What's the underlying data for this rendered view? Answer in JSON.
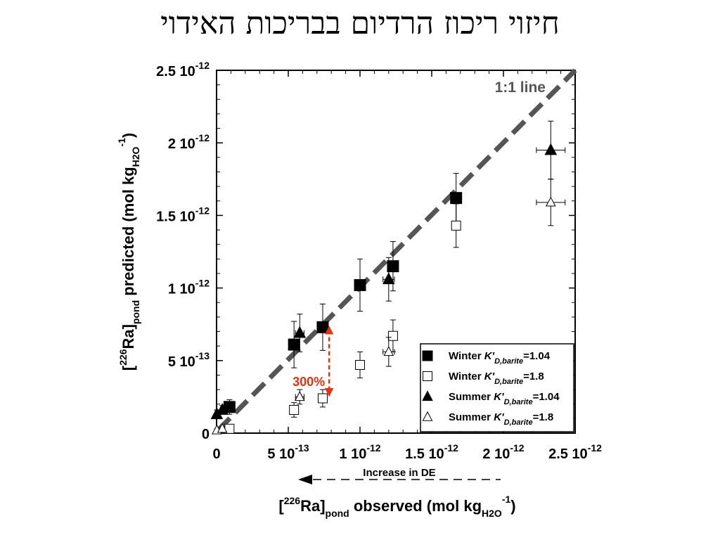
{
  "slide": {
    "title": "חיזוי ריכוז הרדיום בבריכות האידוי"
  },
  "chart_data": {
    "type": "scatter",
    "title": "",
    "xlabel": {
      "prefix": "[",
      "sup": "226",
      "main": "Ra]",
      "sub": "pond",
      "suffix": " observed (mol kg",
      "sub2": "H2O",
      "sup2": "-1",
      "end": ")"
    },
    "ylabel": {
      "prefix": "[",
      "sup": "226",
      "main": "Ra]",
      "sub": "pond",
      "suffix": " predicted (mol kg",
      "sub2": "H2O",
      "sup2": "-1",
      "end": ")"
    },
    "xlim": [
      0,
      2.5e-12
    ],
    "ylim": [
      0,
      2.5e-12
    ],
    "x_ticks": [
      {
        "value": 0,
        "label": "0",
        "exp": ""
      },
      {
        "value": 5e-13,
        "label": "5 10",
        "exp": "-13"
      },
      {
        "value": 1e-12,
        "label": "1 10",
        "exp": "-12"
      },
      {
        "value": 1.5e-12,
        "label": "1.5 10",
        "exp": "-12"
      },
      {
        "value": 2e-12,
        "label": "2 10",
        "exp": "-12"
      },
      {
        "value": 2.5e-12,
        "label": "2.5 10",
        "exp": "-12"
      }
    ],
    "y_ticks": [
      {
        "value": 0,
        "label": "0",
        "exp": ""
      },
      {
        "value": 5e-13,
        "label": "5 10",
        "exp": "-13"
      },
      {
        "value": 1e-12,
        "label": "1 10",
        "exp": "-12"
      },
      {
        "value": 1.5e-12,
        "label": "1.5 10",
        "exp": "-12"
      },
      {
        "value": 2e-12,
        "label": "2 10",
        "exp": "-12"
      },
      {
        "value": 2.5e-12,
        "label": "2.5 10",
        "exp": "-12"
      }
    ],
    "grid": false,
    "legend_position": "bottom-right",
    "series": [
      {
        "name_prefix": "Winter ",
        "name_k": "K'",
        "name_sub": "D,barite",
        "name_val": "=1.04",
        "marker": "square-filled",
        "points": [
          {
            "x": 9e-14,
            "y": 1.8e-13,
            "yerr": 5e-14,
            "xerr": 1e-14
          },
          {
            "x": 5.4e-13,
            "y": 6.1e-13,
            "yerr": 1.6e-13,
            "xerr": 2e-14
          },
          {
            "x": 7.4e-13,
            "y": 7.3e-13,
            "yerr": 1.6e-13,
            "xerr": 2e-14
          },
          {
            "x": 1e-12,
            "y": 1.02e-12,
            "yerr": 1.8e-13,
            "xerr": 2e-14
          },
          {
            "x": 1.23e-12,
            "y": 1.15e-12,
            "yerr": 1.7e-13,
            "xerr": 3e-14
          },
          {
            "x": 1.67e-12,
            "y": 1.62e-12,
            "yerr": 1.7e-13,
            "xerr": 3e-14
          }
        ]
      },
      {
        "name_prefix": "Winter ",
        "name_k": "K'",
        "name_sub": "D,barite",
        "name_val": "=1.8",
        "marker": "square-open",
        "points": [
          {
            "x": 9e-14,
            "y": 3e-14,
            "yerr": 1e-14,
            "xerr": 1e-14
          },
          {
            "x": 5.4e-13,
            "y": 1.6e-13,
            "yerr": 5e-14,
            "xerr": 2e-14
          },
          {
            "x": 7.4e-13,
            "y": 2.4e-13,
            "yerr": 6e-14,
            "xerr": 3e-14
          },
          {
            "x": 1e-12,
            "y": 4.7e-13,
            "yerr": 9e-14,
            "xerr": 3e-14
          },
          {
            "x": 1.23e-12,
            "y": 6.7e-13,
            "yerr": 1.1e-13,
            "xerr": 3e-14
          },
          {
            "x": 1.67e-12,
            "y": 1.43e-12,
            "yerr": 1.5e-13,
            "xerr": 3e-14
          }
        ]
      },
      {
        "name_prefix": "Summer ",
        "name_k": "K'",
        "name_sub": "D,barite",
        "name_val": "=1.04",
        "marker": "triangle-filled",
        "points": [
          {
            "x": 2e-15,
            "y": 1.3e-13,
            "yerr": 3e-14,
            "xerr": 1e-14
          },
          {
            "x": 4e-14,
            "y": 1.6e-13,
            "yerr": 3e-14,
            "xerr": 1e-14
          },
          {
            "x": 5.8e-13,
            "y": 6.9e-13,
            "yerr": 1.3e-13,
            "xerr": 3e-14
          },
          {
            "x": 1.2e-12,
            "y": 1.06e-12,
            "yerr": 1.5e-13,
            "xerr": 4e-14
          },
          {
            "x": 2.33e-12,
            "y": 1.95e-12,
            "yerr": 2e-13,
            "xerr": 1e-13
          }
        ]
      },
      {
        "name_prefix": "Summer ",
        "name_k": "K'",
        "name_sub": "D,barite",
        "name_val": "=1.8",
        "marker": "triangle-open",
        "points": [
          {
            "x": 2e-15,
            "y": 2e-14,
            "yerr": 1e-14,
            "xerr": 1e-14
          },
          {
            "x": 4e-14,
            "y": 3e-14,
            "yerr": 1e-14,
            "xerr": 1e-14
          },
          {
            "x": 5.8e-13,
            "y": 2.5e-13,
            "yerr": 5e-14,
            "xerr": 3e-14
          },
          {
            "x": 1.2e-12,
            "y": 5.6e-13,
            "yerr": 1e-13,
            "xerr": 4e-14
          },
          {
            "x": 2.33e-12,
            "y": 1.59e-12,
            "yerr": 1.6e-13,
            "xerr": 1e-13
          }
        ]
      }
    ],
    "reference_line": {
      "label": "1:1 line",
      "from": [
        1e-14,
        2e-14
      ],
      "to": [
        2.5e-12,
        2.5e-12
      ],
      "color": "#555555"
    },
    "annotations": {
      "highlight_label": "300%",
      "highlight_color": "#e8320c",
      "highlight_arrow": {
        "x": 7.85e-13,
        "y_top": 7.1e-13,
        "y_bottom": 2.8e-13
      },
      "bottom_arrow_label": "Increase in DE"
    }
  }
}
